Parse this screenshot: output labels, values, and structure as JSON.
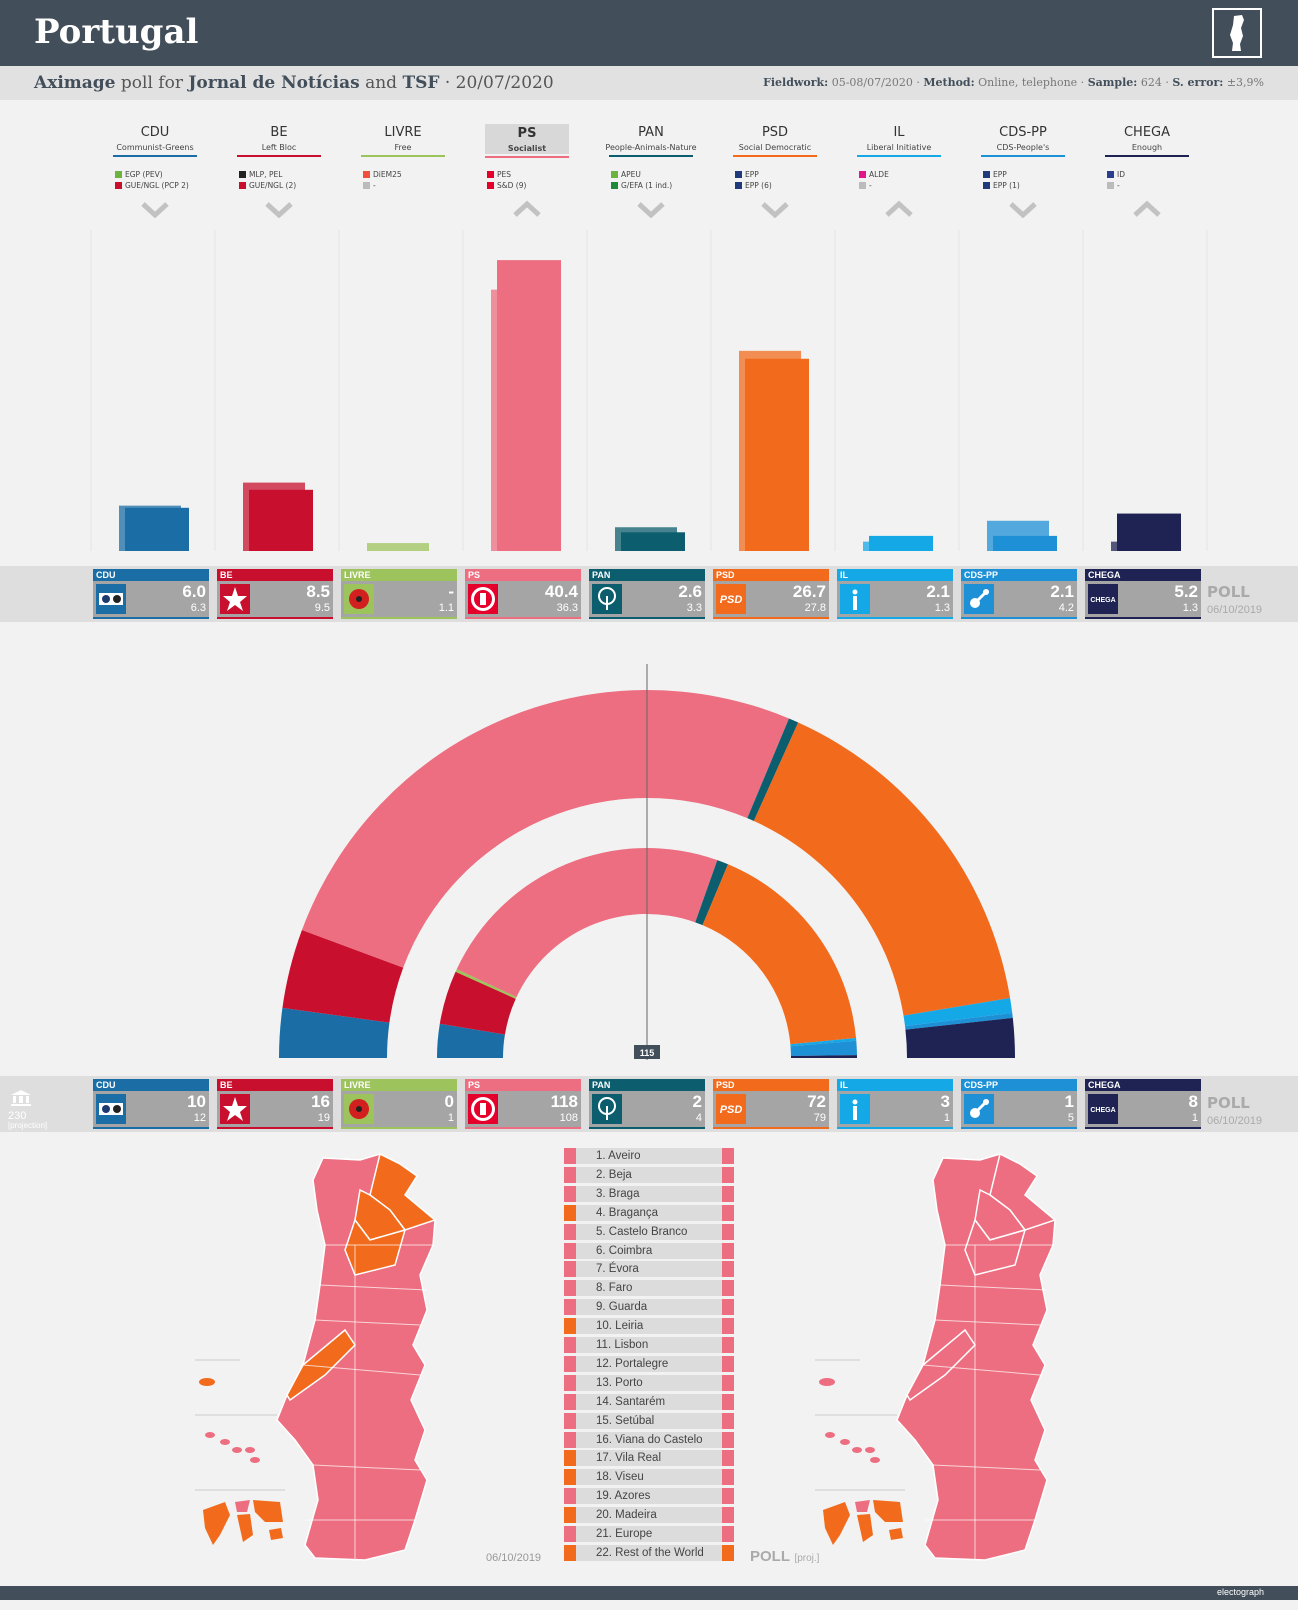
{
  "header": {
    "title": "Portugal"
  },
  "subtitle": {
    "pollster": "Aximage",
    "for": "poll for",
    "client1": "Jornal de Notícias",
    "and": "and",
    "client2": "TSF",
    "date": "· 20/07/2020"
  },
  "meta": {
    "fieldwork_label": "Fieldwork:",
    "fieldwork": "05-08/07/2020 ·",
    "method_label": "Method:",
    "method": "Online, telephone ·",
    "sample_label": "Sample:",
    "sample": "624 ·",
    "error_label": "S. error:",
    "error": "±3,9%"
  },
  "parties": [
    {
      "name": "CDU",
      "desc": "Communist-Greens",
      "color": "#1b6ea5",
      "groups": [
        {
          "c": "#6db33f",
          "t": "EGP (PEV)"
        },
        {
          "c": "#c8102e",
          "t": "GUE/NGL (PCP 2)"
        }
      ],
      "trend": "down",
      "poll": "6.0",
      "prev": "6.3",
      "seats": "10",
      "seats_prev": "12",
      "logo": "hammer-sickle-icon"
    },
    {
      "name": "BE",
      "desc": "Left Bloc",
      "color": "#c8102e",
      "groups": [
        {
          "c": "#222",
          "t": "MLP, PEL"
        },
        {
          "c": "#c8102e",
          "t": "GUE/NGL (2)"
        }
      ],
      "trend": "down",
      "poll": "8.5",
      "prev": "9.5",
      "seats": "16",
      "seats_prev": "19",
      "logo": "star-icon"
    },
    {
      "name": "LIVRE",
      "desc": "Free",
      "color": "#9dc35c",
      "groups": [
        {
          "c": "#f04e3e",
          "t": "DiEM25"
        },
        {
          "c": "#bbb",
          "t": "-"
        }
      ],
      "trend": "none",
      "poll": "-",
      "prev": "1.1",
      "seats": "0",
      "seats_prev": "1",
      "logo": "poppy-icon"
    },
    {
      "name": "PS",
      "desc": "Socialist",
      "color": "#ec6e80",
      "groups": [
        {
          "c": "#e4002b",
          "t": "PES"
        },
        {
          "c": "#e4002b",
          "t": "S&D (9)"
        }
      ],
      "trend": "up",
      "poll": "40.4",
      "prev": "36.3",
      "seats": "118",
      "seats_prev": "108",
      "logo": "fist-icon",
      "highlight": true
    },
    {
      "name": "PAN",
      "desc": "People-Animals-Nature",
      "color": "#0c5e6e",
      "groups": [
        {
          "c": "#6db33f",
          "t": "APEU"
        },
        {
          "c": "#1e8a3a",
          "t": "G/EFA (1 ind.)"
        }
      ],
      "trend": "down",
      "poll": "2.6",
      "prev": "3.3",
      "seats": "2",
      "seats_prev": "4",
      "logo": "tree-icon"
    },
    {
      "name": "PSD",
      "desc": "Social Democratic",
      "color": "#f26b1d",
      "groups": [
        {
          "c": "#1e3a7a",
          "t": "EPP"
        },
        {
          "c": "#1e3a7a",
          "t": "EPP (6)"
        }
      ],
      "trend": "down",
      "poll": "26.7",
      "prev": "27.8",
      "seats": "72",
      "seats_prev": "79",
      "logo": "psd-icon"
    },
    {
      "name": "IL",
      "desc": "Liberal Initiative",
      "color": "#15a8e6",
      "groups": [
        {
          "c": "#e0168c",
          "t": "ALDE"
        },
        {
          "c": "#bbb",
          "t": "-"
        }
      ],
      "trend": "up",
      "poll": "2.1",
      "prev": "1.3",
      "seats": "3",
      "seats_prev": "1",
      "logo": "info-icon"
    },
    {
      "name": "CDS-PP",
      "desc": "CDS-People's",
      "color": "#1e90d6",
      "groups": [
        {
          "c": "#1e3a7a",
          "t": "EPP"
        },
        {
          "c": "#1e3a7a",
          "t": "EPP (1)"
        }
      ],
      "trend": "down",
      "poll": "2.1",
      "prev": "4.2",
      "seats": "1",
      "seats_prev": "5",
      "logo": "cds-icon"
    },
    {
      "name": "CHEGA",
      "desc": "Enough",
      "color": "#1f2354",
      "groups": [
        {
          "c": "#2a3d8f",
          "t": "ID"
        },
        {
          "c": "#bbb",
          "t": "-"
        }
      ],
      "trend": "up",
      "poll": "5.2",
      "prev": "1.3",
      "seats": "8",
      "seats_prev": "1",
      "logo": "chega-icon"
    }
  ],
  "poll_label": "POLL",
  "prev_date": "06/10/2019",
  "seats_total": "230",
  "seats_note": "[projection]",
  "majority": "115",
  "regions": [
    {
      "n": "1. Aveiro",
      "l": "#ec6e80",
      "r": "#ec6e80"
    },
    {
      "n": "2. Beja",
      "l": "#ec6e80",
      "r": "#ec6e80"
    },
    {
      "n": "3. Braga",
      "l": "#ec6e80",
      "r": "#ec6e80"
    },
    {
      "n": "4. Bragança",
      "l": "#f26b1d",
      "r": "#ec6e80"
    },
    {
      "n": "5. Castelo Branco",
      "l": "#ec6e80",
      "r": "#ec6e80"
    },
    {
      "n": "6. Coimbra",
      "l": "#ec6e80",
      "r": "#ec6e80"
    },
    {
      "n": "7. Évora",
      "l": "#ec6e80",
      "r": "#ec6e80"
    },
    {
      "n": "8. Faro",
      "l": "#ec6e80",
      "r": "#ec6e80"
    },
    {
      "n": "9. Guarda",
      "l": "#ec6e80",
      "r": "#ec6e80"
    },
    {
      "n": "10. Leiria",
      "l": "#f26b1d",
      "r": "#ec6e80"
    },
    {
      "n": "11. Lisbon",
      "l": "#ec6e80",
      "r": "#ec6e80"
    },
    {
      "n": "12. Portalegre",
      "l": "#ec6e80",
      "r": "#ec6e80"
    },
    {
      "n": "13. Porto",
      "l": "#ec6e80",
      "r": "#ec6e80"
    },
    {
      "n": "14. Santarém",
      "l": "#ec6e80",
      "r": "#ec6e80"
    },
    {
      "n": "15. Setúbal",
      "l": "#ec6e80",
      "r": "#ec6e80"
    },
    {
      "n": "16. Viana do Castelo",
      "l": "#ec6e80",
      "r": "#ec6e80"
    },
    {
      "n": "17. Vila Real",
      "l": "#f26b1d",
      "r": "#ec6e80"
    },
    {
      "n": "18. Viseu",
      "l": "#f26b1d",
      "r": "#ec6e80"
    },
    {
      "n": "19. Azores",
      "l": "#ec6e80",
      "r": "#ec6e80"
    },
    {
      "n": "20. Madeira",
      "l": "#f26b1d",
      "r": "#ec6e80"
    },
    {
      "n": "21. Europe",
      "l": "#ec6e80",
      "r": "#ec6e80"
    },
    {
      "n": "22. Rest of the World",
      "l": "#f26b1d",
      "r": "#f26b1d"
    }
  ],
  "map_left_label": "06/10/2019",
  "map_right_label": "POLL",
  "map_right_note": "[proj.]",
  "brand": "electograph",
  "chart_data": {
    "type": "bar",
    "categories": [
      "CDU",
      "BE",
      "LIVRE",
      "PS",
      "PAN",
      "PSD",
      "IL",
      "CDS-PP",
      "CHEGA"
    ],
    "series": [
      {
        "name": "POLL",
        "values": [
          6.0,
          8.5,
          null,
          40.4,
          2.6,
          26.7,
          2.1,
          2.1,
          5.2
        ]
      },
      {
        "name": "06/10/2019",
        "values": [
          6.3,
          9.5,
          1.1,
          36.3,
          3.3,
          27.8,
          1.3,
          4.2,
          1.3
        ]
      }
    ],
    "seats": {
      "total": 230,
      "poll": [
        10,
        16,
        0,
        118,
        2,
        72,
        3,
        1,
        8
      ],
      "previous": [
        12,
        19,
        1,
        108,
        4,
        79,
        1,
        5,
        1
      ]
    }
  }
}
